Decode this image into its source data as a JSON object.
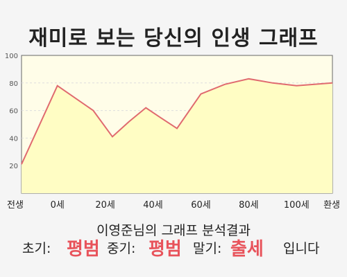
{
  "title": "재미로 보는 당신의 인생 그래프",
  "summary": "이영준님의 그래프 분석결과",
  "results": {
    "early_label": "초기:",
    "early_value": "평범",
    "mid_label": "중기:",
    "mid_value": "평범",
    "late_label": "말기:",
    "late_value": "출세",
    "ending": "입니다"
  },
  "colors": {
    "line": "#e06a6f",
    "fill": "#fffdc4",
    "plot_background": "#fffde8",
    "accent_text": "#e8535b"
  },
  "chart_data": {
    "type": "area",
    "title": "",
    "xlabel": "",
    "ylabel": "",
    "ylim": [
      0,
      100
    ],
    "yticks": [
      20,
      40,
      60,
      80,
      100
    ],
    "grid": true,
    "xtick_positions": [
      -15,
      0,
      20,
      40,
      60,
      80,
      100,
      115
    ],
    "xtick_labels": [
      "전생",
      "0세",
      "20세",
      "40세",
      "60세",
      "80세",
      "100세",
      "환생"
    ],
    "x": [
      -15,
      0,
      15,
      23,
      30,
      37,
      43,
      50,
      60,
      70,
      80,
      90,
      100,
      115
    ],
    "y": [
      21,
      78,
      60,
      41,
      52,
      62,
      55,
      47,
      72,
      79,
      83,
      80,
      78,
      80
    ]
  }
}
